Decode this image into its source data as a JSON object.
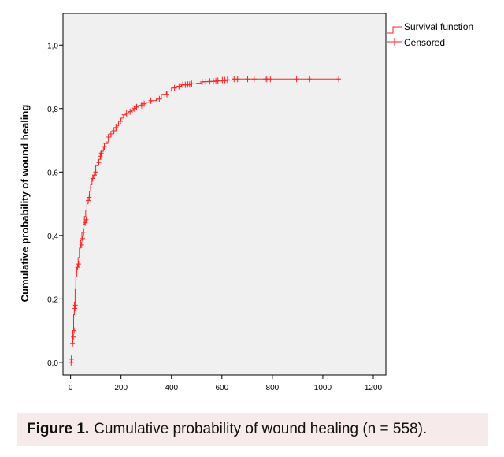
{
  "chart_data": {
    "type": "line",
    "title": "",
    "xlabel": "",
    "ylabel": "Cumulative probability of wound healing",
    "xlim": [
      -30,
      1250
    ],
    "ylim": [
      -0.04,
      1.1
    ],
    "xticks": [
      0,
      200,
      400,
      600,
      800,
      1000,
      1200
    ],
    "xtick_labels": [
      "0",
      "200",
      "400",
      "600",
      "800",
      "1000",
      "1200"
    ],
    "yticks": [
      0.0,
      0.2,
      0.4,
      0.6,
      0.8,
      1.0
    ],
    "ytick_labels": [
      "0,0",
      "0,2",
      "0,4",
      "0,6",
      "0,8",
      "1,0"
    ],
    "grid": false,
    "legend_position": "top-right outside",
    "series_color": "#ff2020",
    "legend": {
      "survival_label": "Survival function",
      "censored_label": "Censored"
    },
    "survival_curve": {
      "x": [
        0,
        3,
        6,
        9,
        12,
        15,
        18,
        21,
        25,
        30,
        35,
        40,
        45,
        50,
        55,
        60,
        65,
        70,
        75,
        80,
        85,
        90,
        95,
        100,
        110,
        120,
        130,
        140,
        150,
        160,
        170,
        180,
        190,
        200,
        210,
        220,
        230,
        240,
        250,
        260,
        270,
        280,
        300,
        320,
        340,
        360,
        380,
        400,
        420,
        440,
        460,
        480,
        500,
        520,
        540,
        560,
        580,
        600,
        620,
        640,
        660,
        700,
        740,
        800,
        850,
        900,
        950,
        1000,
        1063
      ],
      "y": [
        0.0,
        0.02,
        0.06,
        0.1,
        0.15,
        0.19,
        0.23,
        0.27,
        0.3,
        0.33,
        0.36,
        0.385,
        0.41,
        0.435,
        0.46,
        0.48,
        0.5,
        0.52,
        0.54,
        0.56,
        0.58,
        0.59,
        0.6,
        0.62,
        0.64,
        0.665,
        0.68,
        0.695,
        0.71,
        0.72,
        0.73,
        0.745,
        0.76,
        0.77,
        0.78,
        0.785,
        0.79,
        0.795,
        0.8,
        0.805,
        0.81,
        0.815,
        0.82,
        0.825,
        0.83,
        0.845,
        0.855,
        0.865,
        0.87,
        0.875,
        0.875,
        0.878,
        0.88,
        0.885,
        0.885,
        0.886,
        0.887,
        0.888,
        0.89,
        0.893,
        0.893,
        0.893,
        0.893,
        0.893,
        0.893,
        0.893,
        0.893,
        0.893,
        0.893
      ]
    },
    "censored_points": {
      "x": [
        2,
        4,
        8,
        11,
        14,
        17,
        19,
        28,
        32,
        44,
        48,
        52,
        58,
        62,
        70,
        74,
        80,
        88,
        95,
        100,
        112,
        118,
        122,
        134,
        140,
        150,
        160,
        172,
        180,
        198,
        212,
        222,
        236,
        244,
        252,
        262,
        282,
        292,
        318,
        352,
        382,
        412,
        430,
        445,
        455,
        465,
        472,
        480,
        522,
        536,
        552,
        566,
        576,
        584,
        602,
        612,
        622,
        648,
        662,
        702,
        728,
        772,
        778,
        792,
        896,
        948,
        1063
      ],
      "y": [
        0.0,
        0.01,
        0.06,
        0.08,
        0.1,
        0.17,
        0.18,
        0.3,
        0.31,
        0.37,
        0.39,
        0.41,
        0.44,
        0.45,
        0.51,
        0.52,
        0.55,
        0.58,
        0.59,
        0.6,
        0.63,
        0.65,
        0.66,
        0.68,
        0.69,
        0.71,
        0.72,
        0.73,
        0.74,
        0.76,
        0.78,
        0.785,
        0.79,
        0.795,
        0.8,
        0.805,
        0.81,
        0.815,
        0.825,
        0.83,
        0.845,
        0.865,
        0.87,
        0.875,
        0.875,
        0.876,
        0.876,
        0.878,
        0.884,
        0.885,
        0.886,
        0.886,
        0.887,
        0.888,
        0.89,
        0.89,
        0.891,
        0.893,
        0.893,
        0.893,
        0.893,
        0.893,
        0.893,
        0.893,
        0.893,
        0.893,
        0.893
      ]
    }
  },
  "caption": {
    "label": "Figure 1.",
    "text": "Cumulative probability of wound healing (n = 558)."
  }
}
